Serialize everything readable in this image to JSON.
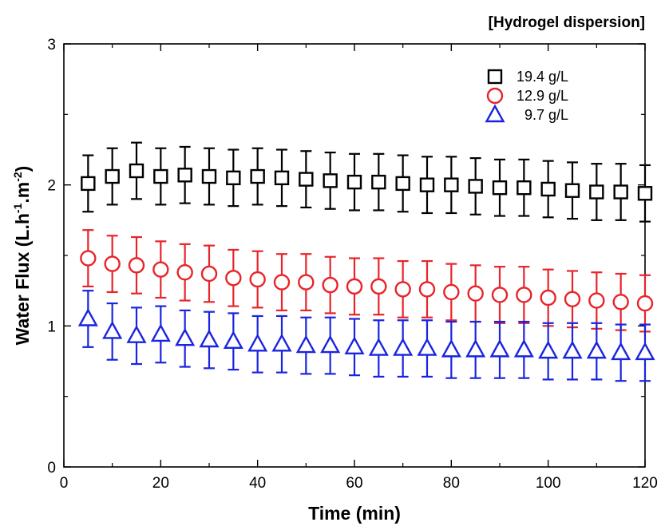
{
  "chart_data": {
    "type": "scatter",
    "title": "[Hydrogel dispersion]",
    "xlabel": "Time (min)",
    "ylabel": {
      "base": "Water Flux (L.h",
      "sup1": "-1",
      "mid": ".m",
      "sup2": "-2",
      "end": ")"
    },
    "xlim": [
      0,
      120
    ],
    "ylim": [
      0,
      3
    ],
    "xticks": [
      0,
      20,
      40,
      60,
      80,
      100,
      120
    ],
    "yticks": [
      0,
      1,
      2,
      3
    ],
    "grid": false,
    "legend_position": "top-right",
    "x": [
      5,
      10,
      15,
      20,
      25,
      30,
      35,
      40,
      45,
      50,
      55,
      60,
      65,
      70,
      75,
      80,
      85,
      90,
      95,
      100,
      105,
      110,
      115,
      120
    ],
    "series": [
      {
        "name": "19.4 g/L",
        "marker": "square",
        "color": "#000000",
        "values": [
          2.01,
          2.06,
          2.1,
          2.06,
          2.07,
          2.06,
          2.05,
          2.06,
          2.05,
          2.04,
          2.03,
          2.02,
          2.02,
          2.01,
          2.0,
          2.0,
          1.99,
          1.98,
          1.98,
          1.97,
          1.96,
          1.95,
          1.95,
          1.94
        ],
        "error": 0.2
      },
      {
        "name": "12.9 g/L",
        "marker": "circle",
        "color": "#e8242a",
        "values": [
          1.48,
          1.44,
          1.43,
          1.4,
          1.38,
          1.37,
          1.34,
          1.33,
          1.31,
          1.31,
          1.29,
          1.28,
          1.28,
          1.26,
          1.26,
          1.24,
          1.23,
          1.22,
          1.22,
          1.2,
          1.19,
          1.18,
          1.17,
          1.16
        ],
        "error": 0.2
      },
      {
        "name": "9.7 g/L",
        "marker": "triangle",
        "color": "#1a24e0",
        "values": [
          1.05,
          0.96,
          0.93,
          0.94,
          0.91,
          0.9,
          0.89,
          0.87,
          0.87,
          0.86,
          0.86,
          0.85,
          0.84,
          0.84,
          0.84,
          0.83,
          0.83,
          0.83,
          0.83,
          0.82,
          0.82,
          0.82,
          0.81,
          0.81
        ],
        "error": 0.2
      }
    ]
  }
}
